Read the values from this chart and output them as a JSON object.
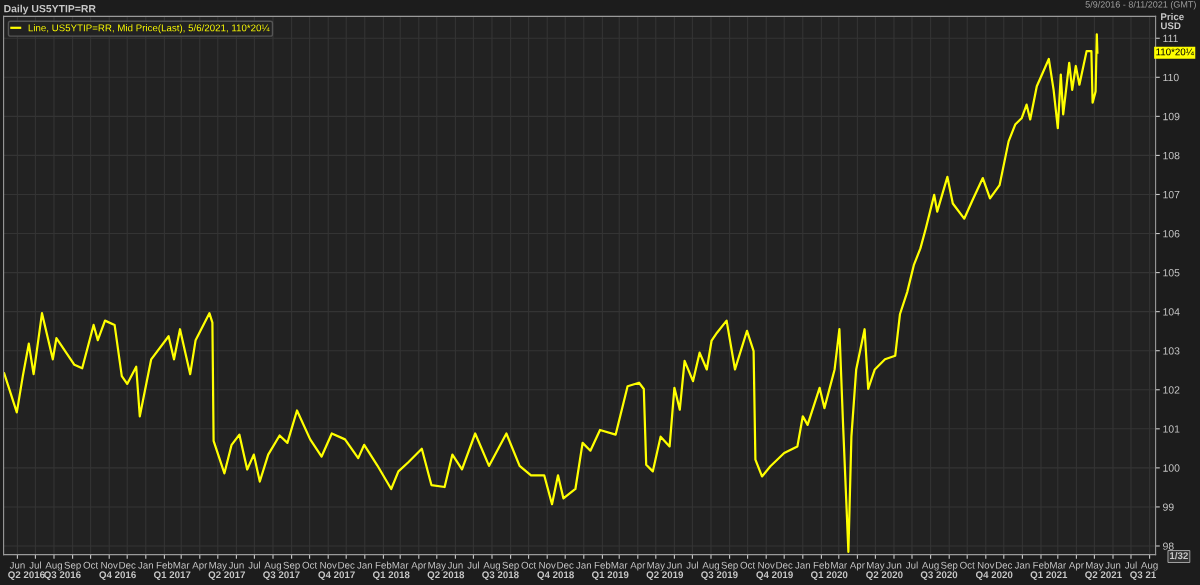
{
  "chart_data": {
    "type": "line",
    "title": "Daily US5YTIP=RR",
    "subtitle": "5/9/2016 - 8/11/2021 (GMT)",
    "ylabel": "Price\nUSD",
    "legend": "top left",
    "grid": true,
    "annotations": [
      "110*20¼",
      "1/32"
    ],
    "xlim": [
      "2016-05-09",
      "2021-08-11"
    ],
    "ylim": [
      97.78,
      111.56
    ],
    "yticks": [
      98,
      99,
      100,
      101,
      102,
      103,
      104,
      105,
      106,
      107,
      108,
      109,
      110,
      111
    ],
    "xticks": [
      {
        "value": "2016-06-01",
        "label": "Jun"
      },
      {
        "value": "2016-07-01",
        "label": "Jul"
      },
      {
        "value": "2016-08-01",
        "label": "Aug"
      },
      {
        "value": "2016-09-01",
        "label": "Sep"
      },
      {
        "value": "2016-10-01",
        "label": "Oct"
      },
      {
        "value": "2016-11-01",
        "label": "Nov"
      },
      {
        "value": "2016-12-01",
        "label": "Dec"
      },
      {
        "value": "2017-01-01",
        "label": "Jan"
      },
      {
        "value": "2017-02-01",
        "label": "Feb"
      },
      {
        "value": "2017-03-01",
        "label": "Mar"
      },
      {
        "value": "2017-04-01",
        "label": "Apr"
      },
      {
        "value": "2017-05-01",
        "label": "May"
      },
      {
        "value": "2017-06-01",
        "label": "Jun"
      },
      {
        "value": "2017-07-01",
        "label": "Jul"
      },
      {
        "value": "2017-08-01",
        "label": "Aug"
      },
      {
        "value": "2017-09-01",
        "label": "Sep"
      },
      {
        "value": "2017-10-01",
        "label": "Oct"
      },
      {
        "value": "2017-11-01",
        "label": "Nov"
      },
      {
        "value": "2017-12-01",
        "label": "Dec"
      },
      {
        "value": "2018-01-01",
        "label": "Jan"
      },
      {
        "value": "2018-02-01",
        "label": "Feb"
      },
      {
        "value": "2018-03-01",
        "label": "Mar"
      },
      {
        "value": "2018-04-01",
        "label": "Apr"
      },
      {
        "value": "2018-05-01",
        "label": "May"
      },
      {
        "value": "2018-06-01",
        "label": "Jun"
      },
      {
        "value": "2018-07-01",
        "label": "Jul"
      },
      {
        "value": "2018-08-01",
        "label": "Aug"
      },
      {
        "value": "2018-09-01",
        "label": "Sep"
      },
      {
        "value": "2018-10-01",
        "label": "Oct"
      },
      {
        "value": "2018-11-01",
        "label": "Nov"
      },
      {
        "value": "2018-12-01",
        "label": "Dec"
      },
      {
        "value": "2019-01-01",
        "label": "Jan"
      },
      {
        "value": "2019-02-01",
        "label": "Feb"
      },
      {
        "value": "2019-03-01",
        "label": "Mar"
      },
      {
        "value": "2019-04-01",
        "label": "Apr"
      },
      {
        "value": "2019-05-01",
        "label": "May"
      },
      {
        "value": "2019-06-01",
        "label": "Jun"
      },
      {
        "value": "2019-07-01",
        "label": "Jul"
      },
      {
        "value": "2019-08-01",
        "label": "Aug"
      },
      {
        "value": "2019-09-01",
        "label": "Sep"
      },
      {
        "value": "2019-10-01",
        "label": "Oct"
      },
      {
        "value": "2019-11-01",
        "label": "Nov"
      },
      {
        "value": "2019-12-01",
        "label": "Dec"
      },
      {
        "value": "2020-01-01",
        "label": "Jan"
      },
      {
        "value": "2020-02-01",
        "label": "Feb"
      },
      {
        "value": "2020-03-01",
        "label": "Mar"
      },
      {
        "value": "2020-04-01",
        "label": "Apr"
      },
      {
        "value": "2020-05-01",
        "label": "May"
      },
      {
        "value": "2020-06-01",
        "label": "Jun"
      },
      {
        "value": "2020-07-01",
        "label": "Jul"
      },
      {
        "value": "2020-08-01",
        "label": "Aug"
      },
      {
        "value": "2020-09-01",
        "label": "Sep"
      },
      {
        "value": "2020-10-01",
        "label": "Oct"
      },
      {
        "value": "2020-11-01",
        "label": "Nov"
      },
      {
        "value": "2020-12-01",
        "label": "Dec"
      },
      {
        "value": "2021-01-01",
        "label": "Jan"
      },
      {
        "value": "2021-02-01",
        "label": "Feb"
      },
      {
        "value": "2021-03-01",
        "label": "Mar"
      },
      {
        "value": "2021-04-01",
        "label": "Apr"
      },
      {
        "value": "2021-05-01",
        "label": "May"
      },
      {
        "value": "2021-06-01",
        "label": "Jun"
      },
      {
        "value": "2021-07-01",
        "label": "Jul"
      },
      {
        "value": "2021-08-01",
        "label": "Aug"
      }
    ],
    "x2lim": [
      "2016-05-09",
      "2021-08-11"
    ],
    "x2ticks": [
      {
        "value": "2016-06-16",
        "label": "Q2 2016"
      },
      {
        "value": "2016-08-15",
        "label": "Q3 2016"
      },
      {
        "value": "2016-11-15",
        "label": "Q4 2016"
      },
      {
        "value": "2017-02-14",
        "label": "Q1 2017"
      },
      {
        "value": "2017-05-16",
        "label": "Q2 2017"
      },
      {
        "value": "2017-08-15",
        "label": "Q3 2017"
      },
      {
        "value": "2017-11-15",
        "label": "Q4 2017"
      },
      {
        "value": "2018-02-14",
        "label": "Q1 2018"
      },
      {
        "value": "2018-05-16",
        "label": "Q2 2018"
      },
      {
        "value": "2018-08-15",
        "label": "Q3 2018"
      },
      {
        "value": "2018-11-15",
        "label": "Q4 2018"
      },
      {
        "value": "2019-02-14",
        "label": "Q1 2019"
      },
      {
        "value": "2019-05-16",
        "label": "Q2 2019"
      },
      {
        "value": "2019-08-15",
        "label": "Q3 2019"
      },
      {
        "value": "2019-11-15",
        "label": "Q4 2019"
      },
      {
        "value": "2020-02-14",
        "label": "Q1 2020"
      },
      {
        "value": "2020-05-16",
        "label": "Q2 2020"
      },
      {
        "value": "2020-08-15",
        "label": "Q3 2020"
      },
      {
        "value": "2020-11-15",
        "label": "Q4 2020"
      },
      {
        "value": "2021-02-14",
        "label": "Q1 2021"
      },
      {
        "value": "2021-05-16",
        "label": "Q2 2021"
      },
      {
        "value": "2021-07-21",
        "label": "Q3 21"
      }
    ],
    "series": [
      {
        "name": "Line, US5YTIP=RR, Mid Price(Last), 5/6/2021, 110*20¼",
        "color": "#ffff00",
        "x": [
          "2016-05-10",
          "2016-05-31",
          "2016-06-10",
          "2016-06-20",
          "2016-06-28",
          "2016-07-12",
          "2016-07-30",
          "2016-08-05",
          "2016-09-04",
          "2016-09-17",
          "2016-10-06",
          "2016-10-13",
          "2016-10-25",
          "2016-11-10",
          "2016-11-22",
          "2016-12-01",
          "2016-12-16",
          "2016-12-22",
          "2017-01-10",
          "2017-02-08",
          "2017-02-17",
          "2017-02-27",
          "2017-03-16",
          "2017-03-25",
          "2017-04-17",
          "2017-04-22",
          "2017-04-24",
          "2017-05-12",
          "2017-05-24",
          "2017-06-06",
          "2017-06-19",
          "2017-06-30",
          "2017-07-10",
          "2017-07-24",
          "2017-08-12",
          "2017-08-25",
          "2017-09-10",
          "2017-10-02",
          "2017-10-21",
          "2017-11-07",
          "2017-11-29",
          "2017-12-21",
          "2017-12-31",
          "2018-01-22",
          "2018-02-14",
          "2018-02-26",
          "2018-03-15",
          "2018-04-06",
          "2018-04-22",
          "2018-05-14",
          "2018-05-27",
          "2018-06-12",
          "2018-07-04",
          "2018-07-27",
          "2018-08-25",
          "2018-09-16",
          "2018-10-05",
          "2018-10-27",
          "2018-11-09",
          "2018-11-19",
          "2018-11-28",
          "2018-12-18",
          "2018-12-30",
          "2019-01-12",
          "2019-01-28",
          "2019-02-23",
          "2019-03-15",
          "2019-04-03",
          "2019-04-11",
          "2019-04-15",
          "2019-04-26",
          "2019-05-09",
          "2019-05-24",
          "2019-06-01",
          "2019-06-10",
          "2019-06-18",
          "2019-07-02",
          "2019-07-13",
          "2019-07-25",
          "2019-08-02",
          "2019-08-11",
          "2019-08-27",
          "2019-09-10",
          "2019-09-30",
          "2019-10-11",
          "2019-10-14",
          "2019-10-25",
          "2019-11-08",
          "2019-12-01",
          "2019-12-23",
          "2020-01-01",
          "2020-01-09",
          "2020-01-29",
          "2020-02-06",
          "2020-02-23",
          "2020-03-02",
          "2020-03-08",
          "2020-03-17",
          "2020-03-22",
          "2020-03-30",
          "2020-04-13",
          "2020-04-19",
          "2020-04-30",
          "2020-05-17",
          "2020-06-03",
          "2020-06-11",
          "2020-06-23",
          "2020-07-04",
          "2020-07-15",
          "2020-07-24",
          "2020-08-07",
          "2020-08-12",
          "2020-08-29",
          "2020-09-07",
          "2020-09-26",
          "2020-10-10",
          "2020-10-27",
          "2020-11-08",
          "2020-11-24",
          "2020-12-09",
          "2020-12-20",
          "2020-12-31",
          "2021-01-08",
          "2021-01-14",
          "2021-01-25",
          "2021-02-14",
          "2021-02-22",
          "2021-03-01",
          "2021-03-06",
          "2021-03-10",
          "2021-03-20",
          "2021-03-25",
          "2021-03-31",
          "2021-04-06",
          "2021-04-18",
          "2021-04-26",
          "2021-04-28",
          "2021-05-03",
          "2021-05-05",
          "2021-05-06"
        ],
        "values": [
          102.42,
          101.42,
          102.35,
          103.18,
          102.4,
          103.96,
          102.78,
          103.32,
          102.64,
          102.55,
          103.66,
          103.27,
          103.77,
          103.66,
          102.35,
          102.15,
          102.59,
          101.32,
          102.78,
          103.37,
          102.78,
          103.55,
          102.4,
          103.27,
          103.96,
          103.72,
          100.69,
          99.86,
          100.59,
          100.85,
          99.96,
          100.34,
          99.65,
          100.34,
          100.83,
          100.64,
          101.47,
          100.73,
          100.29,
          100.88,
          100.73,
          100.25,
          100.59,
          100.06,
          99.46,
          99.91,
          100.15,
          100.49,
          99.56,
          99.51,
          100.34,
          99.96,
          100.88,
          100.05,
          100.88,
          100.05,
          99.81,
          99.81,
          99.07,
          99.81,
          99.22,
          99.46,
          100.64,
          100.44,
          100.97,
          100.85,
          102.09,
          102.18,
          102.02,
          100.08,
          99.91,
          100.8,
          100.55,
          102.05,
          101.49,
          102.74,
          102.22,
          102.95,
          102.52,
          103.26,
          103.46,
          103.77,
          102.52,
          103.51,
          102.99,
          100.21,
          99.78,
          100.04,
          100.38,
          100.55,
          101.32,
          101.1,
          102.05,
          101.53,
          102.52,
          103.55,
          101.15,
          97.85,
          100.8,
          102.52,
          103.55,
          102.02,
          102.52,
          102.78,
          102.87,
          103.94,
          104.5,
          105.19,
          105.62,
          106.13,
          106.99,
          106.56,
          107.45,
          106.77,
          106.38,
          106.86,
          107.42,
          106.9,
          107.24,
          108.36,
          108.79,
          108.96,
          109.3,
          108.92,
          109.77,
          110.47,
          109.68,
          108.7,
          110.07,
          109.05,
          110.37,
          109.68,
          110.29,
          109.81,
          110.67,
          110.67,
          109.35,
          109.64,
          111.1,
          110.63
        ]
      }
    ]
  }
}
